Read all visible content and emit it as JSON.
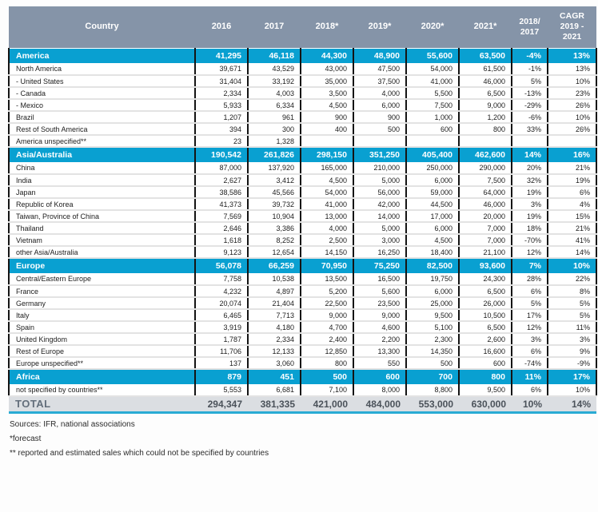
{
  "colors": {
    "header_bg": "#8594A8",
    "section_row_bg": "#09A0D1",
    "grid_line": "#141414",
    "row_divider": "#E3E3E3",
    "total_row_bg": "#DBDEE2",
    "total_underline": "#29ABD4",
    "total_text": "#636E7B"
  },
  "chart_data": {
    "type": "table",
    "columns": [
      "Country",
      "2016",
      "2017",
      "2018*",
      "2019*",
      "2020*",
      "2021*",
      "2018/\n2017",
      "CAGR\n2019 -\n2021"
    ],
    "rows": [
      {
        "label": "America",
        "kind": "section",
        "values": [
          "41,295",
          "46,118",
          "44,300",
          "48,900",
          "55,600",
          "63,500",
          "-4%",
          "13%"
        ]
      },
      {
        "label": "North America",
        "kind": "data",
        "values": [
          "39,671",
          "43,529",
          "43,000",
          "47,500",
          "54,000",
          "61,500",
          "-1%",
          "13%"
        ]
      },
      {
        "label": "- United States",
        "kind": "data",
        "values": [
          "31,404",
          "33,192",
          "35,000",
          "37,500",
          "41,000",
          "46,000",
          "5%",
          "10%"
        ]
      },
      {
        "label": "- Canada",
        "kind": "data",
        "values": [
          "2,334",
          "4,003",
          "3,500",
          "4,000",
          "5,500",
          "6,500",
          "-13%",
          "23%"
        ]
      },
      {
        "label": "- Mexico",
        "kind": "data",
        "values": [
          "5,933",
          "6,334",
          "4,500",
          "6,000",
          "7,500",
          "9,000",
          "-29%",
          "26%"
        ]
      },
      {
        "label": "Brazil",
        "kind": "data",
        "values": [
          "1,207",
          "961",
          "900",
          "900",
          "1,000",
          "1,200",
          "-6%",
          "10%"
        ]
      },
      {
        "label": "Rest of South America",
        "kind": "data",
        "values": [
          "394",
          "300",
          "400",
          "500",
          "600",
          "800",
          "33%",
          "26%"
        ]
      },
      {
        "label": "America unspecified**",
        "kind": "data",
        "values": [
          "23",
          "1,328",
          "",
          "",
          "",
          "",
          "",
          ""
        ]
      },
      {
        "label": "Asia/Australia",
        "kind": "section",
        "values": [
          "190,542",
          "261,826",
          "298,150",
          "351,250",
          "405,400",
          "462,600",
          "14%",
          "16%"
        ]
      },
      {
        "label": "China",
        "kind": "data",
        "values": [
          "87,000",
          "137,920",
          "165,000",
          "210,000",
          "250,000",
          "290,000",
          "20%",
          "21%"
        ]
      },
      {
        "label": "India",
        "kind": "data",
        "values": [
          "2,627",
          "3,412",
          "4,500",
          "5,000",
          "6,000",
          "7,500",
          "32%",
          "19%"
        ]
      },
      {
        "label": "Japan",
        "kind": "data",
        "values": [
          "38,586",
          "45,566",
          "54,000",
          "56,000",
          "59,000",
          "64,000",
          "19%",
          "6%"
        ]
      },
      {
        "label": "Republic of Korea",
        "kind": "data",
        "values": [
          "41,373",
          "39,732",
          "41,000",
          "42,000",
          "44,500",
          "46,000",
          "3%",
          "4%"
        ]
      },
      {
        "label": "Taiwan, Province of China",
        "kind": "data",
        "values": [
          "7,569",
          "10,904",
          "13,000",
          "14,000",
          "17,000",
          "20,000",
          "19%",
          "15%"
        ]
      },
      {
        "label": "Thailand",
        "kind": "data",
        "values": [
          "2,646",
          "3,386",
          "4,000",
          "5,000",
          "6,000",
          "7,000",
          "18%",
          "21%"
        ]
      },
      {
        "label": "Vietnam",
        "kind": "data",
        "values": [
          "1,618",
          "8,252",
          "2,500",
          "3,000",
          "4,500",
          "7,000",
          "-70%",
          "41%"
        ]
      },
      {
        "label": "other Asia/Australia",
        "kind": "data",
        "values": [
          "9,123",
          "12,654",
          "14,150",
          "16,250",
          "18,400",
          "21,100",
          "12%",
          "14%"
        ]
      },
      {
        "label": "Europe",
        "kind": "section",
        "values": [
          "56,078",
          "66,259",
          "70,950",
          "75,250",
          "82,500",
          "93,600",
          "7%",
          "10%"
        ]
      },
      {
        "label": "Central/Eastern Europe",
        "kind": "data",
        "values": [
          "7,758",
          "10,538",
          "13,500",
          "16,500",
          "19,750",
          "24,300",
          "28%",
          "22%"
        ]
      },
      {
        "label": "France",
        "kind": "data",
        "values": [
          "4,232",
          "4,897",
          "5,200",
          "5,600",
          "6,000",
          "6,500",
          "6%",
          "8%"
        ]
      },
      {
        "label": "Germany",
        "kind": "data",
        "values": [
          "20,074",
          "21,404",
          "22,500",
          "23,500",
          "25,000",
          "26,000",
          "5%",
          "5%"
        ]
      },
      {
        "label": "Italy",
        "kind": "data",
        "values": [
          "6,465",
          "7,713",
          "9,000",
          "9,000",
          "9,500",
          "10,500",
          "17%",
          "5%"
        ]
      },
      {
        "label": "Spain",
        "kind": "data",
        "values": [
          "3,919",
          "4,180",
          "4,700",
          "4,600",
          "5,100",
          "6,500",
          "12%",
          "11%"
        ]
      },
      {
        "label": "United Kingdom",
        "kind": "data",
        "values": [
          "1,787",
          "2,334",
          "2,400",
          "2,200",
          "2,300",
          "2,600",
          "3%",
          "3%"
        ]
      },
      {
        "label": "Rest of Europe",
        "kind": "data",
        "values": [
          "11,706",
          "12,133",
          "12,850",
          "13,300",
          "14,350",
          "16,600",
          "6%",
          "9%"
        ]
      },
      {
        "label": "Europe unspecified**",
        "kind": "data",
        "values": [
          "137",
          "3,060",
          "800",
          "550",
          "500",
          "600",
          "-74%",
          "-9%"
        ]
      },
      {
        "label": "Africa",
        "kind": "section",
        "values": [
          "879",
          "451",
          "500",
          "600",
          "700",
          "800",
          "11%",
          "17%"
        ]
      },
      {
        "label": "not specified by countries**",
        "kind": "data",
        "values": [
          "5,553",
          "6,681",
          "7,100",
          "8,000",
          "8,800",
          "9,500",
          "6%",
          "10%"
        ]
      },
      {
        "label": "TOTAL",
        "kind": "total",
        "values": [
          "294,347",
          "381,335",
          "421,000",
          "484,000",
          "553,000",
          "630,000",
          "10%",
          "14%"
        ]
      }
    ]
  },
  "footnotes": [
    "Sources: IFR, national associations",
    "*forecast",
    "** reported and estimated sales which could not be specified by countries"
  ]
}
